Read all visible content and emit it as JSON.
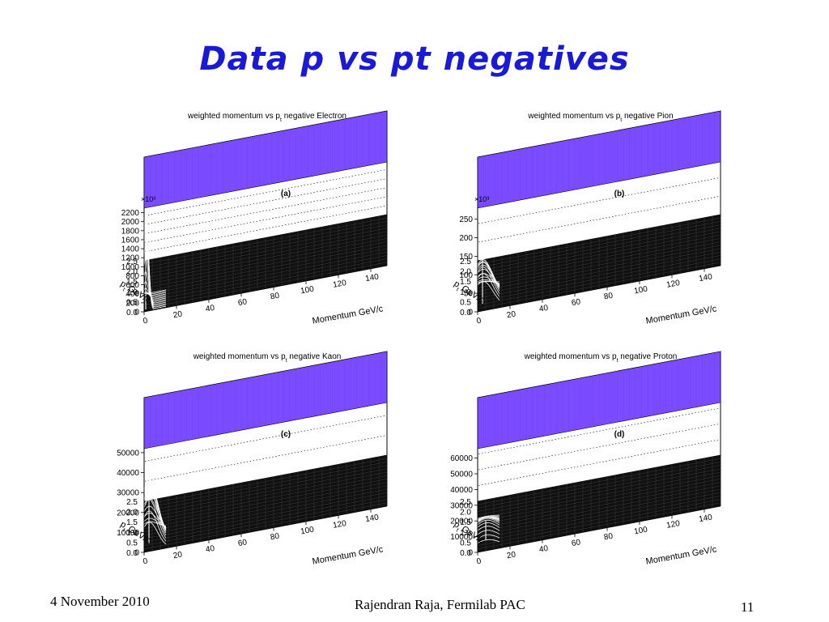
{
  "slide": {
    "title": "Data p vs pt negatives",
    "footer_date": "4 November 2010",
    "footer_author": "Rajendran Raja, Fermilab PAC",
    "page_number": "11"
  },
  "colors": {
    "surface_top": "#7b4cff",
    "floor": "#101010",
    "peak_line": "#ffffff",
    "title_blue": "#1a1ad6"
  },
  "chart_data": [
    {
      "id": "a",
      "type": "surface",
      "panel_label": "(a)",
      "title_main": "weighted momentum vs p",
      "title_sub": "t",
      "title_rest": " negative Electron",
      "z_exponent": "×10³",
      "z_ticks": [
        "0",
        "200",
        "400",
        "600",
        "800",
        "1000",
        "1200",
        "1400",
        "1600",
        "1800",
        "2000",
        "2200"
      ],
      "z_max": 2300,
      "y_label": "p",
      "y_label_sub": "t",
      "y_label_rest": " GeV/c",
      "y_ticks": [
        "0.0",
        "0.5",
        "1.0",
        "1.5",
        "2.0",
        "2.5"
      ],
      "x_label": "Momentum GeV/c",
      "x_ticks": [
        "0",
        "20",
        "40",
        "60",
        "80",
        "100",
        "120",
        "140"
      ],
      "peak": {
        "momentum": 1,
        "pt": 0.1,
        "height_fraction": 0.98,
        "spread": 0.015,
        "secondary": 0.05
      }
    },
    {
      "id": "b",
      "type": "surface",
      "panel_label": "(b)",
      "title_main": "weighted momentum vs p",
      "title_sub": "t",
      "title_rest": " negative Pion",
      "z_exponent": "×10³",
      "z_ticks": [
        "0",
        "50",
        "100",
        "150",
        "200",
        "250"
      ],
      "z_max": 280,
      "y_label": "p",
      "y_label_sub": "t",
      "y_label_rest": " GeV/c",
      "y_ticks": [
        "0.0",
        "0.5",
        "1.0",
        "1.5",
        "2.0",
        "2.5"
      ],
      "x_label": "Momentum GeV/c",
      "x_ticks": [
        "0",
        "20",
        "40",
        "60",
        "80",
        "100",
        "120",
        "140"
      ],
      "peak": {
        "momentum": 3,
        "pt": 0.35,
        "height_fraction": 0.42,
        "spread": 0.06,
        "secondary": 0.35
      }
    },
    {
      "id": "c",
      "type": "surface",
      "panel_label": "(c)",
      "title_main": "weighted momentum vs p",
      "title_sub": "t",
      "title_rest": " negative Kaon",
      "z_exponent": "",
      "z_ticks": [
        "0",
        "10000",
        "20000",
        "30000",
        "40000",
        "50000"
      ],
      "z_max": 52000,
      "y_label": "p",
      "y_label_sub": "t",
      "y_label_rest": " GeV/c",
      "y_ticks": [
        "0.0",
        "0.5",
        "1.0",
        "1.5",
        "2.0",
        "2.5"
      ],
      "x_label": "Momentum GeV/c",
      "x_ticks": [
        "0",
        "20",
        "40",
        "60",
        "80",
        "100",
        "120",
        "140"
      ],
      "peak": {
        "momentum": 3,
        "pt": 0.4,
        "height_fraction": 0.62,
        "spread": 0.05,
        "secondary": 0.2
      }
    },
    {
      "id": "d",
      "type": "surface",
      "panel_label": "(d)",
      "title_main": "weighted momentum vs p",
      "title_sub": "t",
      "title_rest": " negative Proton",
      "z_exponent": "",
      "z_ticks": [
        "0",
        "10000",
        "20000",
        "30000",
        "40000",
        "50000",
        "60000"
      ],
      "z_max": 66000,
      "y_label": "p",
      "y_label_sub": "t",
      "y_label_rest": " GeV/c",
      "y_ticks": [
        "0.0",
        "0.5",
        "1.0",
        "1.5",
        "2.0",
        "2.5"
      ],
      "x_label": "Momentum GeV/c",
      "x_ticks": [
        "0",
        "20",
        "40",
        "60",
        "80",
        "100",
        "120",
        "140"
      ],
      "peak": {
        "momentum": 5,
        "pt": 0.55,
        "height_fraction": 0.18,
        "spread": 0.08,
        "secondary": 0.6
      }
    }
  ]
}
